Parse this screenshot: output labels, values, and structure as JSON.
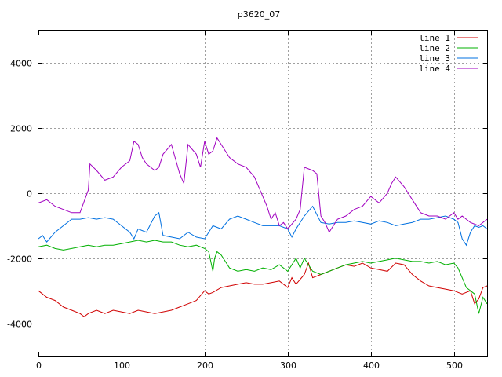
{
  "chart_data": {
    "type": "line",
    "title": "p3620_07",
    "xlabel": "",
    "ylabel": "",
    "xlim": [
      0,
      540
    ],
    "ylim": [
      -5000,
      5000
    ],
    "x_ticks": [
      0,
      100,
      200,
      300,
      400,
      500
    ],
    "y_ticks": [
      -4000,
      -2000,
      0,
      2000,
      4000
    ],
    "grid": true,
    "legend_position": "top-right",
    "series": [
      {
        "name": "line 1",
        "color": "#d00000",
        "x": [
          0,
          10,
          20,
          30,
          40,
          50,
          55,
          60,
          70,
          80,
          90,
          100,
          110,
          120,
          130,
          140,
          150,
          160,
          170,
          180,
          190,
          200,
          205,
          210,
          220,
          230,
          240,
          250,
          260,
          270,
          280,
          290,
          300,
          305,
          310,
          320,
          325,
          330,
          340,
          350,
          360,
          370,
          380,
          390,
          400,
          410,
          420,
          430,
          440,
          450,
          460,
          470,
          480,
          490,
          500,
          510,
          520,
          525,
          530,
          535,
          540
        ],
        "y": [
          -3000,
          -3200,
          -3300,
          -3500,
          -3600,
          -3700,
          -3800,
          -3700,
          -3600,
          -3700,
          -3600,
          -3650,
          -3700,
          -3600,
          -3650,
          -3700,
          -3650,
          -3600,
          -3500,
          -3400,
          -3300,
          -3000,
          -3100,
          -3050,
          -2900,
          -2850,
          -2800,
          -2750,
          -2800,
          -2800,
          -2750,
          -2700,
          -2900,
          -2600,
          -2800,
          -2500,
          -2150,
          -2600,
          -2500,
          -2400,
          -2300,
          -2200,
          -2250,
          -2150,
          -2300,
          -2350,
          -2400,
          -2150,
          -2200,
          -2500,
          -2700,
          -2850,
          -2900,
          -2950,
          -3000,
          -3100,
          -3000,
          -3400,
          -3250,
          -2900,
          -2850
        ]
      },
      {
        "name": "line 2",
        "color": "#00b000",
        "x": [
          0,
          10,
          20,
          30,
          40,
          50,
          60,
          70,
          80,
          90,
          100,
          110,
          120,
          130,
          140,
          150,
          160,
          170,
          180,
          190,
          200,
          205,
          210,
          212,
          215,
          220,
          225,
          230,
          240,
          250,
          260,
          270,
          280,
          290,
          300,
          310,
          315,
          320,
          330,
          340,
          350,
          360,
          370,
          380,
          390,
          400,
          410,
          420,
          430,
          440,
          450,
          460,
          470,
          480,
          490,
          500,
          505,
          510,
          515,
          520,
          525,
          530,
          535,
          540
        ],
        "y": [
          -1650,
          -1600,
          -1700,
          -1750,
          -1700,
          -1650,
          -1600,
          -1650,
          -1600,
          -1600,
          -1550,
          -1500,
          -1450,
          -1500,
          -1450,
          -1500,
          -1500,
          -1600,
          -1650,
          -1600,
          -1700,
          -1800,
          -2400,
          -2000,
          -1800,
          -1900,
          -2100,
          -2300,
          -2400,
          -2350,
          -2400,
          -2300,
          -2350,
          -2200,
          -2400,
          -2000,
          -2300,
          -2000,
          -2400,
          -2500,
          -2400,
          -2300,
          -2200,
          -2150,
          -2100,
          -2150,
          -2100,
          -2050,
          -2000,
          -2050,
          -2100,
          -2100,
          -2150,
          -2100,
          -2200,
          -2150,
          -2300,
          -2600,
          -2900,
          -3000,
          -3100,
          -3700,
          -3200,
          -3400
        ]
      },
      {
        "name": "line 3",
        "color": "#0070e0",
        "x": [
          0,
          5,
          10,
          20,
          30,
          40,
          50,
          60,
          70,
          80,
          90,
          100,
          110,
          115,
          120,
          130,
          140,
          145,
          150,
          160,
          170,
          180,
          190,
          200,
          210,
          220,
          230,
          240,
          250,
          260,
          270,
          280,
          290,
          300,
          305,
          310,
          320,
          330,
          340,
          350,
          360,
          370,
          380,
          390,
          400,
          410,
          420,
          430,
          440,
          450,
          460,
          470,
          480,
          490,
          500,
          505,
          510,
          515,
          520,
          525,
          530,
          535,
          540
        ],
        "y": [
          -1400,
          -1300,
          -1500,
          -1200,
          -1000,
          -800,
          -800,
          -750,
          -800,
          -750,
          -800,
          -1000,
          -1200,
          -1400,
          -1100,
          -1200,
          -700,
          -600,
          -1300,
          -1350,
          -1400,
          -1200,
          -1350,
          -1400,
          -1000,
          -1100,
          -800,
          -700,
          -800,
          -900,
          -1000,
          -1000,
          -1000,
          -1100,
          -1350,
          -1100,
          -700,
          -400,
          -900,
          -950,
          -900,
          -900,
          -850,
          -900,
          -950,
          -850,
          -900,
          -1000,
          -950,
          -900,
          -800,
          -800,
          -750,
          -700,
          -800,
          -900,
          -1400,
          -1600,
          -1200,
          -1000,
          -1050,
          -1000,
          -1100
        ]
      },
      {
        "name": "line 4",
        "color": "#a000c0",
        "x": [
          0,
          10,
          20,
          30,
          40,
          50,
          60,
          62,
          70,
          80,
          90,
          100,
          110,
          115,
          120,
          125,
          130,
          140,
          145,
          150,
          160,
          170,
          175,
          180,
          190,
          195,
          200,
          205,
          210,
          215,
          220,
          230,
          240,
          250,
          260,
          270,
          275,
          280,
          285,
          290,
          295,
          300,
          310,
          315,
          320,
          330,
          335,
          340,
          345,
          350,
          360,
          370,
          380,
          390,
          400,
          410,
          420,
          425,
          430,
          440,
          450,
          460,
          470,
          480,
          490,
          500,
          505,
          510,
          520,
          530,
          540
        ],
        "y": [
          -300,
          -200,
          -400,
          -500,
          -600,
          -600,
          100,
          900,
          700,
          400,
          500,
          800,
          1000,
          1600,
          1500,
          1100,
          900,
          700,
          800,
          1200,
          1500,
          600,
          300,
          1500,
          1200,
          800,
          1600,
          1200,
          1300,
          1700,
          1500,
          1100,
          900,
          800,
          500,
          -100,
          -400,
          -800,
          -600,
          -1000,
          -900,
          -1100,
          -800,
          -500,
          800,
          700,
          600,
          -700,
          -900,
          -1200,
          -800,
          -700,
          -500,
          -400,
          -100,
          -300,
          0,
          300,
          500,
          200,
          -200,
          -600,
          -700,
          -700,
          -800,
          -600,
          -800,
          -700,
          -900,
          -1000,
          -800
        ]
      }
    ]
  }
}
